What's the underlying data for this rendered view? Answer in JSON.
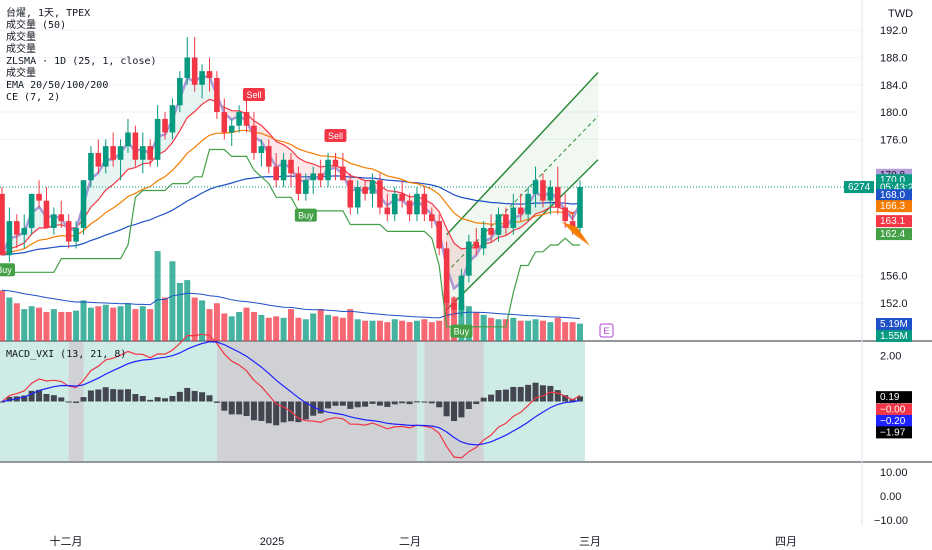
{
  "legend": {
    "symbol": "台燿, 1天, TPEX",
    "volume_50": "成交量 (50)",
    "volume_a": "成交量",
    "volume_b": "成交量",
    "zlsma": "ZLSMA · 1D (25, 1, close)",
    "volume_c": "成交量",
    "ema": "EMA 20/50/100/200",
    "ce": "CE (7, 2)"
  },
  "currency": "TWD",
  "price_axis": {
    "ticks": [
      "192.0",
      "188.0",
      "184.0",
      "180.0",
      "176.0",
      "156.0",
      "152.0"
    ],
    "min": 149.5,
    "max": 193.5
  },
  "price_tags": [
    {
      "label": "170.8",
      "value": 170.8,
      "bg": "#b39ddb",
      "fg": "#131722"
    },
    {
      "label": "170.0",
      "value": 170.0,
      "bg": "#089981",
      "fg": "#ffffff"
    },
    {
      "label": "05:43:23",
      "value": 168.9,
      "bg": "#089981",
      "fg": "#ffffff"
    },
    {
      "label": "168.0",
      "value": 167.8,
      "bg": "#1e50c8",
      "fg": "#ffffff"
    },
    {
      "label": "166.3",
      "value": 166.2,
      "bg": "#f57c00",
      "fg": "#ffffff"
    },
    {
      "label": "163.1",
      "value": 164.0,
      "bg": "#f23645",
      "fg": "#ffffff"
    },
    {
      "label": "162.4",
      "value": 162.1,
      "bg": "#43a047",
      "fg": "#ffffff"
    }
  ],
  "last_price_label": "6274",
  "volume_tags": [
    {
      "label": "5.19M",
      "bg": "#1e50c8"
    },
    {
      "label": "1.55M",
      "bg": "#089981"
    }
  ],
  "event_badge": "E",
  "signals": [
    {
      "label": "Sell",
      "type": "sell",
      "index": 34
    },
    {
      "label": "Sell",
      "type": "sell",
      "index": 45
    },
    {
      "label": "Buy",
      "type": "buy",
      "index": 41
    },
    {
      "label": "Buy",
      "type": "buy",
      "index": 62
    },
    {
      "label": "Buy",
      "type": "buy",
      "index": 0
    }
  ],
  "macd": {
    "label": "MACD_VXI (13, 21, 8)",
    "ticks": [
      "2.00",
      "0.00"
    ],
    "min": -2.6,
    "max": 2.6,
    "tags": [
      {
        "label": "0.19",
        "value": 0.19,
        "bg": "#000000"
      },
      {
        "label": "−0.00",
        "value": -0.35,
        "bg": "#f23645"
      },
      {
        "label": "−0.20",
        "value": -0.85,
        "bg": "#1e23ff"
      },
      {
        "label": "−1.97",
        "value": -1.35,
        "bg": "#000000"
      }
    ]
  },
  "bottom_pane": {
    "ticks": [
      "10.00",
      "0.00",
      "−10.00"
    ]
  },
  "time_axis": {
    "labels": [
      "十二月",
      "2025",
      "二月",
      "三月",
      "四月"
    ]
  },
  "colors": {
    "up": "#089981",
    "down": "#f23645",
    "ema_fast": "#f23645",
    "ema_mid": "#f57c00",
    "ema_slow": "#1e50c8",
    "zlsma": "#a99ad6",
    "ce": "#43a047",
    "channel": "#2e8b3a"
  },
  "chart_data": {
    "type": "candlestick",
    "ohlc": [
      [
        168,
        169,
        159,
        159
      ],
      [
        159,
        166,
        158,
        164
      ],
      [
        164,
        165,
        160,
        162
      ],
      [
        162,
        165,
        160,
        163
      ],
      [
        163,
        168,
        162,
        168
      ],
      [
        168,
        170,
        166,
        167
      ],
      [
        167,
        169,
        163,
        163
      ],
      [
        163,
        166,
        162,
        165
      ],
      [
        165,
        167,
        163,
        164
      ],
      [
        164,
        165,
        160,
        161
      ],
      [
        161,
        164,
        160,
        163
      ],
      [
        163,
        170,
        162,
        170
      ],
      [
        170,
        175,
        169,
        174
      ],
      [
        174,
        176,
        171,
        172
      ],
      [
        172,
        176,
        171,
        175
      ],
      [
        175,
        177,
        172,
        173
      ],
      [
        173,
        176,
        170,
        175
      ],
      [
        175,
        179,
        174,
        177
      ],
      [
        177,
        178,
        172,
        173
      ],
      [
        173,
        177,
        171,
        175
      ],
      [
        175,
        176,
        172,
        173
      ],
      [
        173,
        181,
        172,
        179
      ],
      [
        179,
        180,
        176,
        177
      ],
      [
        177,
        182,
        176,
        181
      ],
      [
        181,
        186,
        180,
        185
      ],
      [
        185,
        191,
        184,
        188
      ],
      [
        188,
        191,
        183,
        184
      ],
      [
        184,
        187,
        182,
        186
      ],
      [
        186,
        188,
        183,
        185
      ],
      [
        185,
        186,
        179,
        180
      ],
      [
        180,
        182,
        176,
        177
      ],
      [
        177,
        179,
        175,
        178
      ],
      [
        178,
        181,
        177,
        180
      ],
      [
        180,
        182,
        177,
        178
      ],
      [
        178,
        180,
        173,
        174
      ],
      [
        174,
        176,
        172,
        175
      ],
      [
        175,
        176,
        171,
        172
      ],
      [
        172,
        174,
        169,
        170
      ],
      [
        170,
        174,
        169,
        173
      ],
      [
        173,
        174,
        169,
        171
      ],
      [
        171,
        172,
        167,
        168
      ],
      [
        168,
        171,
        167,
        170
      ],
      [
        170,
        172,
        168,
        171
      ],
      [
        171,
        173,
        169,
        170
      ],
      [
        170,
        174,
        169,
        173
      ],
      [
        173,
        174,
        170,
        172
      ],
      [
        172,
        174,
        170,
        170
      ],
      [
        170,
        171,
        165,
        166
      ],
      [
        166,
        170,
        165,
        169
      ],
      [
        169,
        170,
        167,
        168
      ],
      [
        168,
        171,
        166,
        170
      ],
      [
        170,
        171,
        165,
        166
      ],
      [
        166,
        168,
        164,
        165
      ],
      [
        165,
        169,
        164,
        168
      ],
      [
        168,
        170,
        166,
        167
      ],
      [
        167,
        168,
        164,
        165
      ],
      [
        165,
        169,
        164,
        168
      ],
      [
        168,
        169,
        164,
        165
      ],
      [
        165,
        166,
        163,
        164
      ],
      [
        164,
        165,
        159,
        160
      ],
      [
        160,
        161,
        150,
        152
      ],
      [
        152,
        153,
        150,
        151
      ],
      [
        151,
        157,
        150,
        156
      ],
      [
        156,
        162,
        155,
        161
      ],
      [
        161,
        163,
        159,
        160
      ],
      [
        160,
        164,
        159,
        163
      ],
      [
        163,
        165,
        161,
        162
      ],
      [
        162,
        166,
        161,
        165
      ],
      [
        165,
        166,
        162,
        163
      ],
      [
        163,
        168,
        162,
        166
      ],
      [
        166,
        168,
        164,
        165
      ],
      [
        165,
        169,
        164,
        168
      ],
      [
        168,
        172,
        166,
        170
      ],
      [
        170,
        171,
        166,
        167
      ],
      [
        167,
        170,
        165,
        169
      ],
      [
        169,
        172,
        165,
        166
      ],
      [
        166,
        168,
        163,
        164
      ],
      [
        164,
        165,
        162,
        163
      ],
      [
        163,
        170,
        162,
        169
      ]
    ],
    "volume": [
      35,
      30,
      26,
      22,
      24,
      23,
      20,
      22,
      20,
      20,
      21,
      28,
      23,
      24,
      25,
      23,
      24,
      26,
      22,
      24,
      22,
      62,
      30,
      55,
      40,
      42,
      30,
      28,
      22,
      26,
      19,
      17,
      20,
      23,
      20,
      18,
      16,
      17,
      16,
      22,
      16,
      15,
      19,
      22,
      18,
      17,
      16,
      22,
      15,
      14,
      14,
      14,
      13,
      15,
      14,
      13,
      14,
      15,
      13,
      14,
      34,
      30,
      25,
      24,
      20,
      18,
      16,
      15,
      15,
      16,
      14,
      14,
      15,
      14,
      13,
      16,
      13,
      13,
      12
    ]
  }
}
